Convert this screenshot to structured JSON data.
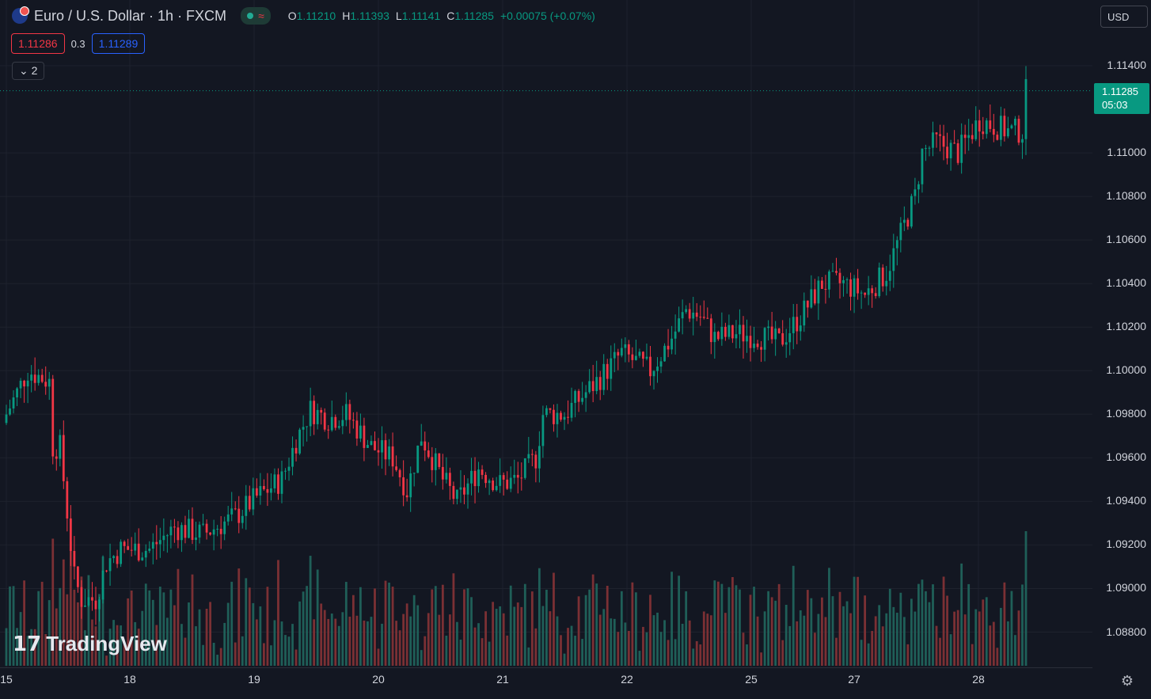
{
  "header": {
    "symbol": "Euro / U.S. Dollar · 1h · FXCM",
    "status_icon": "market-open-dot",
    "o_label": "O",
    "o": "1.11210",
    "h_label": "H",
    "h": "1.11393",
    "l_label": "L",
    "l": "1.11141",
    "c_label": "C",
    "c": "1.11285",
    "change": "+0.00075 (+0.07%)"
  },
  "quote": {
    "bid": "1.11286",
    "spread": "0.3",
    "ask": "1.11289"
  },
  "indicators_toggle": "2",
  "currency_button": "USD",
  "y_axis": {
    "ticks": [
      "1.11400",
      "1.11000",
      "1.10800",
      "1.10600",
      "1.10400",
      "1.10200",
      "1.10000",
      "1.09800",
      "1.09600",
      "1.09400",
      "1.09200",
      "1.09000",
      "1.08800"
    ],
    "last_price": "1.11285",
    "countdown": "05:03"
  },
  "x_axis": {
    "ticks": [
      "15",
      "18",
      "19",
      "20",
      "21",
      "22",
      "25",
      "27",
      "28"
    ]
  },
  "watermark": "TradingView",
  "colors": {
    "up": "#089981",
    "down": "#f23645",
    "background": "#131722",
    "grid": "#1e222d"
  },
  "chart_data": {
    "type": "candlestick",
    "ylim": [
      1.0865,
      1.1155
    ],
    "anchors": [
      [
        0,
        1.098
      ],
      [
        6,
        1.1
      ],
      [
        12,
        1.0995
      ],
      [
        13,
        1.0965
      ],
      [
        15,
        1.0965
      ],
      [
        17,
        1.0935
      ],
      [
        19,
        1.0905
      ],
      [
        21,
        1.0895
      ],
      [
        25,
        1.0895
      ],
      [
        28,
        1.0912
      ],
      [
        32,
        1.0918
      ],
      [
        40,
        1.0918
      ],
      [
        47,
        1.0928
      ],
      [
        55,
        1.0925
      ],
      [
        64,
        1.0933
      ],
      [
        70,
        1.0942
      ],
      [
        77,
        1.095
      ],
      [
        81,
        1.0968
      ],
      [
        85,
        1.0982
      ],
      [
        90,
        1.0978
      ],
      [
        95,
        1.098
      ],
      [
        102,
        1.0965
      ],
      [
        108,
        1.096
      ],
      [
        112,
        1.0945
      ],
      [
        116,
        1.097
      ],
      [
        122,
        1.095
      ],
      [
        126,
        1.094
      ],
      [
        132,
        1.0955
      ],
      [
        138,
        1.0948
      ],
      [
        143,
        1.095
      ],
      [
        148,
        1.096
      ],
      [
        150,
        1.098
      ],
      [
        156,
        1.098
      ],
      [
        165,
        1.0995
      ],
      [
        172,
        1.1008
      ],
      [
        180,
        1.1
      ],
      [
        186,
        1.1015
      ],
      [
        190,
        1.1028
      ],
      [
        194,
        1.1025
      ],
      [
        198,
        1.1015
      ],
      [
        204,
        1.1017
      ],
      [
        210,
        1.1016
      ],
      [
        216,
        1.1013
      ],
      [
        222,
        1.1025
      ],
      [
        228,
        1.104
      ],
      [
        234,
        1.104
      ],
      [
        240,
        1.1035
      ],
      [
        246,
        1.1045
      ],
      [
        254,
        1.108
      ],
      [
        256,
        1.11
      ],
      [
        260,
        1.1105
      ],
      [
        266,
        1.11
      ],
      [
        272,
        1.1115
      ],
      [
        280,
        1.111
      ],
      [
        284,
        1.111
      ],
      [
        285,
        1.1128
      ]
    ],
    "volume_range": [
      0,
      220
    ]
  }
}
